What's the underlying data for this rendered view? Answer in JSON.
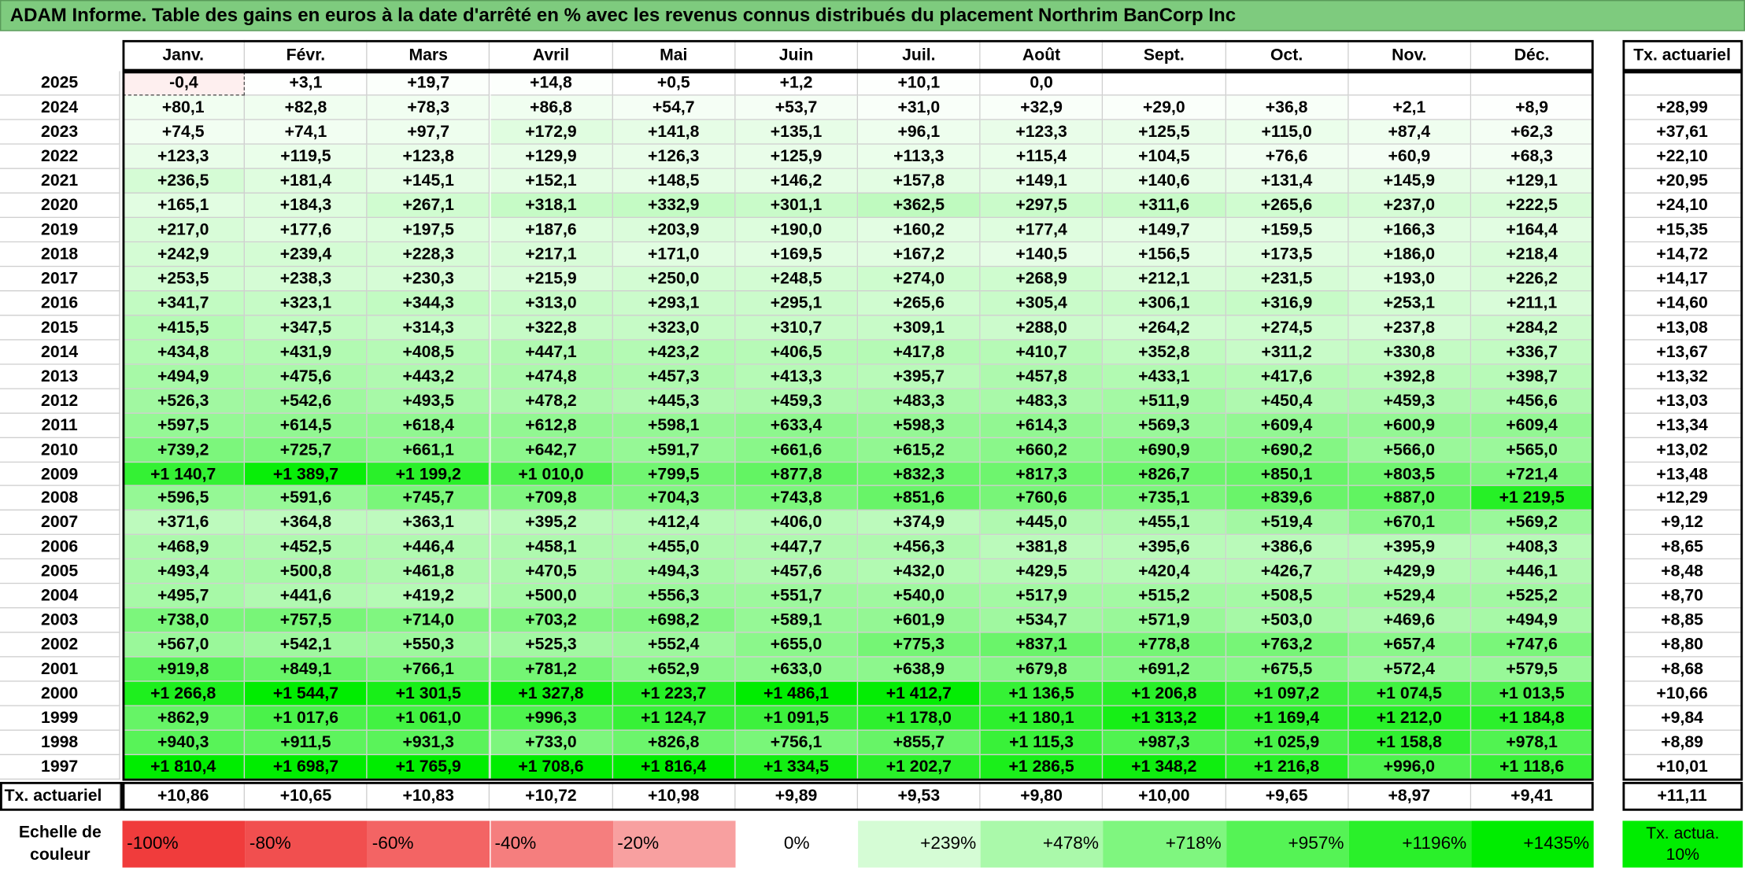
{
  "header": {
    "title": "ADAM Informe. Table des gains en euros à la date d'arrêté en % avec les revenus connus distribués du placement Northrim BanCorp Inc"
  },
  "table": {
    "columns": [
      "Janv.",
      "Févr.",
      "Mars",
      "Avril",
      "Mai",
      "Juin",
      "Juil.",
      "Août",
      "Sept.",
      "Oct.",
      "Nov.",
      "Déc."
    ],
    "total_header": "Tx. actuariel",
    "rows": [
      {
        "year": "2025",
        "values": [
          "-0,4",
          "+3,1",
          "+19,7",
          "+14,8",
          "+0,5",
          "+1,2",
          "+10,1",
          "0,0"
        ]
      },
      {
        "year": "2024",
        "values": [
          "+80,1",
          "+82,8",
          "+78,3",
          "+86,8",
          "+54,7",
          "+53,7",
          "+31,0",
          "+32,9",
          "+29,0",
          "+36,8",
          "+2,1",
          "+8,9"
        ],
        "total": "+28,99"
      },
      {
        "year": "2023",
        "values": [
          "+74,5",
          "+74,1",
          "+97,7",
          "+172,9",
          "+141,8",
          "+135,1",
          "+96,1",
          "+123,3",
          "+125,5",
          "+115,0",
          "+87,4",
          "+62,3"
        ],
        "total": "+37,61"
      },
      {
        "year": "2022",
        "values": [
          "+123,3",
          "+119,5",
          "+123,8",
          "+129,9",
          "+126,3",
          "+125,9",
          "+113,3",
          "+115,4",
          "+104,5",
          "+76,6",
          "+60,9",
          "+68,3"
        ],
        "total": "+22,10"
      },
      {
        "year": "2021",
        "values": [
          "+236,5",
          "+181,4",
          "+145,1",
          "+152,1",
          "+148,5",
          "+146,2",
          "+157,8",
          "+149,1",
          "+140,6",
          "+131,4",
          "+145,9",
          "+129,1"
        ],
        "total": "+20,95"
      },
      {
        "year": "2020",
        "values": [
          "+165,1",
          "+184,3",
          "+267,1",
          "+318,1",
          "+332,9",
          "+301,1",
          "+362,5",
          "+297,5",
          "+311,6",
          "+265,6",
          "+237,0",
          "+222,5"
        ],
        "total": "+24,10"
      },
      {
        "year": "2019",
        "values": [
          "+217,0",
          "+177,6",
          "+197,5",
          "+187,6",
          "+203,9",
          "+190,0",
          "+160,2",
          "+177,4",
          "+149,7",
          "+159,5",
          "+166,3",
          "+164,4"
        ],
        "total": "+15,35"
      },
      {
        "year": "2018",
        "values": [
          "+242,9",
          "+239,4",
          "+228,3",
          "+217,1",
          "+171,0",
          "+169,5",
          "+167,2",
          "+140,5",
          "+156,5",
          "+173,5",
          "+186,0",
          "+218,4"
        ],
        "total": "+14,72"
      },
      {
        "year": "2017",
        "values": [
          "+253,5",
          "+238,3",
          "+230,3",
          "+215,9",
          "+250,0",
          "+248,5",
          "+274,0",
          "+268,9",
          "+212,1",
          "+231,5",
          "+193,0",
          "+226,2"
        ],
        "total": "+14,17"
      },
      {
        "year": "2016",
        "values": [
          "+341,7",
          "+323,1",
          "+344,3",
          "+313,0",
          "+293,1",
          "+295,1",
          "+265,6",
          "+305,4",
          "+306,1",
          "+316,9",
          "+253,1",
          "+211,1"
        ],
        "total": "+14,60"
      },
      {
        "year": "2015",
        "values": [
          "+415,5",
          "+347,5",
          "+314,3",
          "+322,8",
          "+323,0",
          "+310,7",
          "+309,1",
          "+288,0",
          "+264,2",
          "+274,5",
          "+237,8",
          "+284,2"
        ],
        "total": "+13,08"
      },
      {
        "year": "2014",
        "values": [
          "+434,8",
          "+431,9",
          "+408,5",
          "+447,1",
          "+423,2",
          "+406,5",
          "+417,8",
          "+410,7",
          "+352,8",
          "+311,2",
          "+330,8",
          "+336,7"
        ],
        "total": "+13,67"
      },
      {
        "year": "2013",
        "values": [
          "+494,9",
          "+475,6",
          "+443,2",
          "+474,8",
          "+457,3",
          "+413,3",
          "+395,7",
          "+457,8",
          "+433,1",
          "+417,6",
          "+392,8",
          "+398,7"
        ],
        "total": "+13,32"
      },
      {
        "year": "2012",
        "values": [
          "+526,3",
          "+542,6",
          "+493,5",
          "+478,2",
          "+445,3",
          "+459,3",
          "+483,3",
          "+483,3",
          "+511,9",
          "+450,4",
          "+459,3",
          "+456,6"
        ],
        "total": "+13,03"
      },
      {
        "year": "2011",
        "values": [
          "+597,5",
          "+614,5",
          "+618,4",
          "+612,8",
          "+598,1",
          "+633,4",
          "+598,3",
          "+614,3",
          "+569,3",
          "+609,4",
          "+600,9",
          "+609,4"
        ],
        "total": "+13,34"
      },
      {
        "year": "2010",
        "values": [
          "+739,2",
          "+725,7",
          "+661,1",
          "+642,7",
          "+591,7",
          "+661,6",
          "+615,2",
          "+660,2",
          "+690,9",
          "+690,2",
          "+566,0",
          "+565,0"
        ],
        "total": "+13,02"
      },
      {
        "year": "2009",
        "values": [
          "+1 140,7",
          "+1 389,7",
          "+1 199,2",
          "+1 010,0",
          "+799,5",
          "+877,8",
          "+832,3",
          "+817,3",
          "+826,7",
          "+850,1",
          "+803,5",
          "+721,4"
        ],
        "total": "+13,48"
      },
      {
        "year": "2008",
        "values": [
          "+596,5",
          "+591,6",
          "+745,7",
          "+709,8",
          "+704,3",
          "+743,8",
          "+851,6",
          "+760,6",
          "+735,1",
          "+839,6",
          "+887,0",
          "+1 219,5"
        ],
        "total": "+12,29"
      },
      {
        "year": "2007",
        "values": [
          "+371,6",
          "+364,8",
          "+363,1",
          "+395,2",
          "+412,4",
          "+406,0",
          "+374,9",
          "+445,0",
          "+455,1",
          "+519,4",
          "+670,1",
          "+569,2"
        ],
        "total": "+9,12"
      },
      {
        "year": "2006",
        "values": [
          "+468,9",
          "+452,5",
          "+446,4",
          "+458,1",
          "+455,0",
          "+447,7",
          "+456,3",
          "+381,8",
          "+395,6",
          "+386,6",
          "+395,9",
          "+408,3"
        ],
        "total": "+8,65"
      },
      {
        "year": "2005",
        "values": [
          "+493,4",
          "+500,8",
          "+461,8",
          "+470,5",
          "+494,3",
          "+457,6",
          "+432,0",
          "+429,5",
          "+420,4",
          "+426,7",
          "+429,9",
          "+446,1"
        ],
        "total": "+8,48"
      },
      {
        "year": "2004",
        "values": [
          "+495,7",
          "+441,6",
          "+419,2",
          "+500,0",
          "+556,3",
          "+551,7",
          "+540,0",
          "+517,9",
          "+515,2",
          "+508,5",
          "+529,4",
          "+525,2"
        ],
        "total": "+8,70"
      },
      {
        "year": "2003",
        "values": [
          "+738,0",
          "+757,5",
          "+714,0",
          "+703,2",
          "+698,2",
          "+589,1",
          "+601,9",
          "+534,7",
          "+571,9",
          "+503,0",
          "+469,6",
          "+494,9"
        ],
        "total": "+8,85"
      },
      {
        "year": "2002",
        "values": [
          "+567,0",
          "+542,1",
          "+550,3",
          "+525,3",
          "+552,4",
          "+655,0",
          "+775,3",
          "+837,1",
          "+778,8",
          "+763,2",
          "+657,4",
          "+747,6"
        ],
        "total": "+8,80"
      },
      {
        "year": "2001",
        "values": [
          "+919,8",
          "+849,1",
          "+766,1",
          "+781,2",
          "+652,9",
          "+633,0",
          "+638,9",
          "+679,8",
          "+691,2",
          "+675,5",
          "+572,4",
          "+579,5"
        ],
        "total": "+8,68"
      },
      {
        "year": "2000",
        "values": [
          "+1 266,8",
          "+1 544,7",
          "+1 301,5",
          "+1 327,8",
          "+1 223,7",
          "+1 486,1",
          "+1 412,7",
          "+1 136,5",
          "+1 206,8",
          "+1 097,2",
          "+1 074,5",
          "+1 013,5"
        ],
        "total": "+10,66"
      },
      {
        "year": "1999",
        "values": [
          "+862,9",
          "+1 017,6",
          "+1 061,0",
          "+996,3",
          "+1 124,7",
          "+1 091,5",
          "+1 178,0",
          "+1 180,1",
          "+1 313,2",
          "+1 169,4",
          "+1 212,0",
          "+1 184,8"
        ],
        "total": "+9,84"
      },
      {
        "year": "1998",
        "values": [
          "+940,3",
          "+911,5",
          "+931,3",
          "+733,0",
          "+826,8",
          "+756,1",
          "+855,7",
          "+1 115,3",
          "+987,3",
          "+1 025,9",
          "+1 158,8",
          "+978,1"
        ],
        "total": "+8,89"
      },
      {
        "year": "1997",
        "values": [
          "+1 810,4",
          "+1 698,7",
          "+1 765,9",
          "+1 708,6",
          "+1 816,4",
          "+1 334,5",
          "+1 202,7",
          "+1 286,5",
          "+1 348,2",
          "+1 216,8",
          "+996,0",
          "+1 118,6"
        ],
        "total": "+10,01"
      }
    ],
    "footer": {
      "label": "Tx. actuariel",
      "values": [
        "+10,86",
        "+10,65",
        "+10,83",
        "+10,72",
        "+10,98",
        "+9,89",
        "+9,53",
        "+9,80",
        "+10,00",
        "+9,65",
        "+8,97",
        "+9,41"
      ],
      "total": "+11,11"
    }
  },
  "legend": {
    "label": "Echelle de couleur",
    "items": [
      "-100%",
      "-80%",
      "-60%",
      "-40%",
      "-20%",
      "0%",
      "+239%",
      "+478%",
      "+718%",
      "+957%",
      "+1196%",
      "+1435%"
    ],
    "total": "Tx. actua. 10%"
  }
}
